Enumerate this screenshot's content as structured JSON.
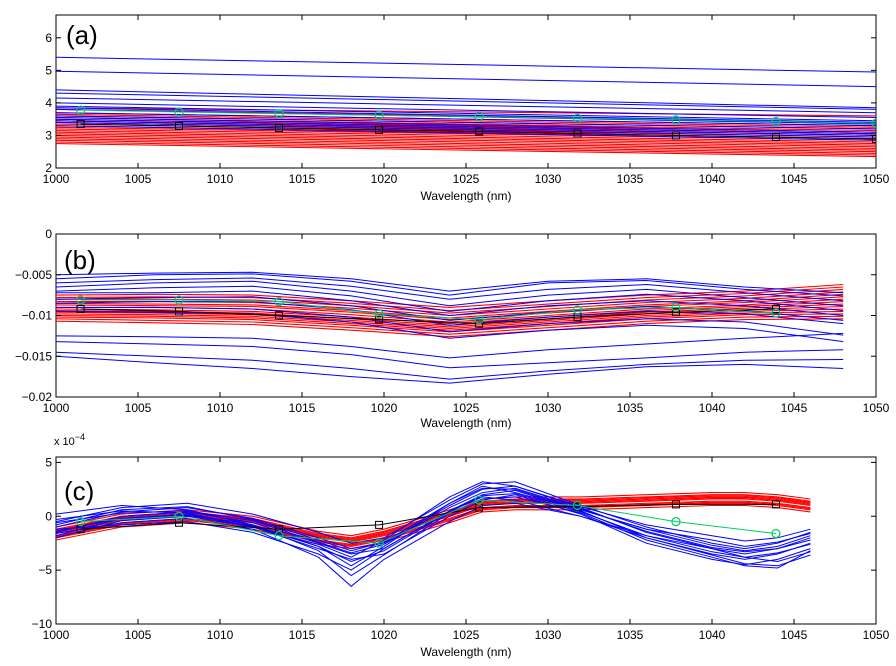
{
  "chart_data": [
    {
      "type": "line",
      "panel_label": "(a)",
      "xlabel": "Wavelength (nm)",
      "ylabel": "",
      "xlim": [
        1000,
        1050
      ],
      "ylim": [
        2,
        6.7
      ],
      "xticks": [
        1000,
        1005,
        1010,
        1015,
        1020,
        1025,
        1030,
        1035,
        1040,
        1045,
        1050
      ],
      "yticks": [
        2,
        3,
        4,
        5,
        6
      ],
      "colors": {
        "group_a": "#0000ff",
        "group_b": "#ff0000",
        "mean_a": "#00cc66",
        "mean_b": "#000000"
      },
      "x": [
        1000,
        1050
      ],
      "series_blue": [
        [
          5.4,
          4.95
        ],
        [
          4.97,
          4.5
        ],
        [
          4.4,
          3.85
        ],
        [
          4.3,
          3.8
        ],
        [
          4.15,
          3.7
        ],
        [
          4.0,
          3.55
        ],
        [
          3.9,
          3.45
        ],
        [
          3.85,
          3.4
        ],
        [
          3.8,
          3.35
        ],
        [
          3.7,
          3.3
        ],
        [
          3.6,
          3.2
        ],
        [
          3.55,
          3.1
        ],
        [
          3.5,
          3.05
        ],
        [
          3.45,
          3.0
        ],
        [
          3.4,
          2.95
        ],
        [
          3.3,
          2.85
        ]
      ],
      "series_red": [
        [
          3.85,
          3.6
        ],
        [
          3.8,
          3.4
        ],
        [
          3.7,
          3.3
        ],
        [
          3.65,
          3.25
        ],
        [
          3.6,
          3.2
        ],
        [
          3.55,
          3.15
        ],
        [
          3.5,
          3.1
        ],
        [
          3.45,
          3.05
        ],
        [
          3.4,
          3.0
        ],
        [
          3.35,
          2.95
        ],
        [
          3.3,
          2.9
        ],
        [
          3.25,
          2.85
        ],
        [
          3.2,
          2.8
        ],
        [
          3.15,
          2.75
        ],
        [
          3.1,
          2.7
        ],
        [
          3.05,
          2.65
        ],
        [
          3.0,
          2.6
        ],
        [
          2.95,
          2.55
        ],
        [
          2.9,
          2.5
        ],
        [
          2.85,
          2.45
        ],
        [
          2.8,
          2.4
        ],
        [
          2.75,
          2.35
        ]
      ],
      "markers_x": [
        1001.5,
        1007.5,
        1013.6,
        1019.7,
        1025.8,
        1031.8,
        1037.8,
        1043.9,
        1050
      ],
      "mean_a": [
        3.78,
        3.72,
        3.67,
        3.62,
        3.58,
        3.53,
        3.48,
        3.43,
        3.38
      ],
      "mean_b": [
        3.35,
        3.29,
        3.23,
        3.17,
        3.12,
        3.06,
        3.0,
        2.95,
        2.89
      ]
    },
    {
      "type": "line",
      "panel_label": "(b)",
      "xlabel": "Wavelength (nm)",
      "ylabel": "",
      "xlim": [
        1000,
        1050
      ],
      "ylim": [
        -0.02,
        0
      ],
      "xticks": [
        1000,
        1005,
        1010,
        1015,
        1020,
        1025,
        1030,
        1035,
        1040,
        1045,
        1050
      ],
      "yticks": [
        -0.02,
        -0.015,
        -0.01,
        -0.005,
        0
      ],
      "ytick_labels": [
        "−0.02",
        "−0.015",
        "−0.01",
        "−0.005",
        "0"
      ],
      "colors": {
        "group_a": "#0000ff",
        "group_b": "#ff0000",
        "mean_a": "#00cc66",
        "mean_b": "#000000"
      },
      "x": [
        1000,
        1006,
        1012,
        1018,
        1024,
        1030,
        1036,
        1042,
        1048
      ],
      "series_blue": [
        [
          -0.005,
          -0.0048,
          -0.0047,
          -0.0055,
          -0.007,
          -0.0058,
          -0.0055,
          -0.0065,
          -0.0072
        ],
        [
          -0.0055,
          -0.005,
          -0.0049,
          -0.0058,
          -0.0075,
          -0.006,
          -0.0057,
          -0.0068,
          -0.0076
        ],
        [
          -0.006,
          -0.0056,
          -0.0054,
          -0.0064,
          -0.008,
          -0.0068,
          -0.0062,
          -0.0072,
          -0.0082
        ],
        [
          -0.0065,
          -0.006,
          -0.0058,
          -0.007,
          -0.0088,
          -0.0075,
          -0.0068,
          -0.0078,
          -0.0088
        ],
        [
          -0.007,
          -0.0066,
          -0.0064,
          -0.0076,
          -0.0095,
          -0.0082,
          -0.0074,
          -0.0082,
          -0.0094
        ],
        [
          -0.0072,
          -0.0072,
          -0.007,
          -0.0082,
          -0.01,
          -0.0088,
          -0.0082,
          -0.0088,
          -0.01
        ],
        [
          -0.008,
          -0.0078,
          -0.0077,
          -0.0088,
          -0.0106,
          -0.0096,
          -0.0089,
          -0.0094,
          -0.0106
        ],
        [
          -0.0085,
          -0.0083,
          -0.0083,
          -0.0093,
          -0.0112,
          -0.0102,
          -0.0095,
          -0.0098,
          -0.011
        ],
        [
          -0.009,
          -0.009,
          -0.0092,
          -0.0102,
          -0.012,
          -0.011,
          -0.0104,
          -0.0108,
          -0.0124
        ],
        [
          -0.0095,
          -0.0096,
          -0.0098,
          -0.0108,
          -0.0128,
          -0.0118,
          -0.0112,
          -0.0116,
          -0.0132
        ],
        [
          -0.0125,
          -0.0126,
          -0.0128,
          -0.0138,
          -0.0152,
          -0.0142,
          -0.0135,
          -0.0128,
          -0.0122
        ],
        [
          -0.0132,
          -0.0135,
          -0.0138,
          -0.0148,
          -0.0164,
          -0.0158,
          -0.0152,
          -0.0145,
          -0.0142
        ],
        [
          -0.0145,
          -0.015,
          -0.0155,
          -0.0165,
          -0.0178,
          -0.0168,
          -0.016,
          -0.0155,
          -0.0154
        ],
        [
          -0.015,
          -0.0158,
          -0.0165,
          -0.0175,
          -0.0183,
          -0.0172,
          -0.0163,
          -0.016,
          -0.0165
        ]
      ],
      "series_red": [
        [
          -0.0075,
          -0.0074,
          -0.0075,
          -0.0082,
          -0.009,
          -0.0082,
          -0.0075,
          -0.007,
          -0.0062
        ],
        [
          -0.0078,
          -0.0077,
          -0.0078,
          -0.0085,
          -0.0094,
          -0.0086,
          -0.0078,
          -0.0073,
          -0.0065
        ],
        [
          -0.008,
          -0.008,
          -0.0081,
          -0.0088,
          -0.0097,
          -0.0089,
          -0.0081,
          -0.0076,
          -0.0068
        ],
        [
          -0.0083,
          -0.0083,
          -0.0084,
          -0.0091,
          -0.01,
          -0.0092,
          -0.0084,
          -0.0079,
          -0.0071
        ],
        [
          -0.0085,
          -0.0086,
          -0.0087,
          -0.0094,
          -0.0103,
          -0.0095,
          -0.0087,
          -0.0082,
          -0.0074
        ],
        [
          -0.0087,
          -0.0088,
          -0.0089,
          -0.0096,
          -0.0105,
          -0.0097,
          -0.0089,
          -0.0084,
          -0.0077
        ],
        [
          -0.009,
          -0.009,
          -0.0092,
          -0.0099,
          -0.0108,
          -0.01,
          -0.0092,
          -0.0087,
          -0.008
        ],
        [
          -0.0092,
          -0.0093,
          -0.0095,
          -0.0102,
          -0.011,
          -0.0102,
          -0.0094,
          -0.0089,
          -0.0083
        ],
        [
          -0.0094,
          -0.0095,
          -0.0097,
          -0.0104,
          -0.0112,
          -0.0104,
          -0.0096,
          -0.0091,
          -0.0086
        ],
        [
          -0.0096,
          -0.0097,
          -0.0099,
          -0.0106,
          -0.0114,
          -0.0106,
          -0.0098,
          -0.0093,
          -0.0089
        ],
        [
          -0.0098,
          -0.0099,
          -0.0101,
          -0.0108,
          -0.0116,
          -0.0108,
          -0.01,
          -0.0095,
          -0.0092
        ],
        [
          -0.01,
          -0.0101,
          -0.0103,
          -0.011,
          -0.0118,
          -0.011,
          -0.0102,
          -0.0097,
          -0.0095
        ],
        [
          -0.0102,
          -0.0103,
          -0.0105,
          -0.0112,
          -0.012,
          -0.0112,
          -0.0104,
          -0.0099,
          -0.0098
        ],
        [
          -0.0104,
          -0.0106,
          -0.0108,
          -0.0115,
          -0.0123,
          -0.0115,
          -0.0107,
          -0.0102,
          -0.0101
        ],
        [
          -0.0107,
          -0.0109,
          -0.0111,
          -0.0118,
          -0.0126,
          -0.0118,
          -0.011,
          -0.0105,
          -0.0104
        ]
      ],
      "markers_x": [
        1001.5,
        1007.5,
        1013.6,
        1019.7,
        1025.8,
        1031.8,
        1037.8,
        1043.9
      ],
      "mean_a": [
        -0.0081,
        -0.0081,
        -0.0083,
        -0.0098,
        -0.0105,
        -0.0093,
        -0.009,
        -0.0097
      ],
      "mean_b": [
        -0.0092,
        -0.0095,
        -0.01,
        -0.0105,
        -0.011,
        -0.0102,
        -0.0096,
        -0.0092
      ]
    },
    {
      "type": "line",
      "panel_label": "(c)",
      "xlabel": "Wavelength (nm)",
      "ylabel": "",
      "y_exponent": "x 10",
      "y_exponent_power": "−4",
      "xlim": [
        1000,
        1050
      ],
      "ylim": [
        -10,
        5.5
      ],
      "xticks": [
        1000,
        1005,
        1010,
        1015,
        1020,
        1025,
        1030,
        1035,
        1040,
        1045,
        1050
      ],
      "yticks": [
        -10,
        -5,
        0,
        5
      ],
      "ytick_labels": [
        "−10",
        "−5",
        "0",
        "5"
      ],
      "colors": {
        "group_a": "#0000ff",
        "group_b": "#ff0000",
        "mean_a": "#00cc66",
        "mean_b": "#000000"
      },
      "x": [
        1000,
        1004,
        1008,
        1012,
        1016,
        1018,
        1020,
        1024,
        1026,
        1028,
        1032,
        1036,
        1040,
        1042,
        1044,
        1046
      ],
      "series_blue": [
        [
          -0.5,
          0.8,
          1.2,
          0.2,
          -1.5,
          -2.5,
          -2.0,
          1.5,
          3.0,
          3.2,
          1.0,
          -1.0,
          -2.5,
          -3.0,
          -2.5,
          -1.5
        ],
        [
          -1.0,
          0.4,
          0.8,
          -0.2,
          -2.0,
          -3.0,
          -2.5,
          1.0,
          2.5,
          2.8,
          0.8,
          -1.5,
          -3.0,
          -3.5,
          -3.0,
          -2.0
        ],
        [
          -1.5,
          0.0,
          0.4,
          -0.6,
          -2.5,
          -3.5,
          -3.0,
          0.5,
          2.0,
          2.4,
          0.5,
          -2.0,
          -3.5,
          -4.0,
          -3.5,
          -2.5
        ],
        [
          -2.0,
          -0.4,
          0.0,
          -1.0,
          -3.0,
          -4.0,
          -3.5,
          0.0,
          1.5,
          2.0,
          0.2,
          -2.5,
          -4.0,
          -4.5,
          -4.0,
          -3.0
        ],
        [
          -1.2,
          -0.8,
          -0.5,
          -1.5,
          -3.5,
          -5.0,
          -3.0,
          0.5,
          1.8,
          1.5,
          0.0,
          -1.8,
          -3.0,
          -3.8,
          -4.2,
          -3.3
        ],
        [
          0.2,
          1.0,
          0.6,
          -0.8,
          -2.8,
          -4.6,
          -2.8,
          1.2,
          2.8,
          2.2,
          0.6,
          -1.2,
          -2.2,
          -2.8,
          -2.4,
          -1.6
        ],
        [
          -0.8,
          0.6,
          0.9,
          -0.3,
          -2.2,
          -3.2,
          -2.4,
          1.2,
          2.6,
          2.5,
          0.6,
          -1.2,
          -2.7,
          -3.2,
          -2.8,
          -1.8
        ],
        [
          -1.6,
          -0.6,
          -0.2,
          -1.2,
          -3.8,
          -6.5,
          -4.0,
          -0.5,
          1.0,
          1.2,
          0.0,
          -2.0,
          -3.6,
          -4.4,
          -4.6,
          -3.6
        ],
        [
          -0.3,
          0.5,
          0.3,
          -1.0,
          -2.6,
          -3.8,
          -2.2,
          1.8,
          3.2,
          2.8,
          0.9,
          -0.8,
          -1.8,
          -2.3,
          -2.0,
          -1.2
        ],
        [
          -1.8,
          -0.2,
          0.2,
          -0.8,
          -3.2,
          -5.5,
          -3.6,
          0.3,
          1.6,
          1.8,
          0.3,
          -2.2,
          -3.8,
          -4.6,
          -4.8,
          -3.2
        ],
        [
          -0.6,
          0.3,
          0.5,
          -0.4,
          -2.4,
          -3.4,
          -2.6,
          0.8,
          2.2,
          2.6,
          0.7,
          -1.4,
          -2.9,
          -3.3,
          -3.0,
          -2.2
        ],
        [
          -1.4,
          -0.2,
          0.1,
          -0.9,
          -2.8,
          -4.2,
          -3.2,
          0.4,
          1.9,
          2.1,
          0.4,
          -1.8,
          -3.3,
          -3.8,
          -3.4,
          -2.6
        ]
      ],
      "series_red": [
        [
          -2.2,
          -1.0,
          -0.6,
          -1.2,
          -2.6,
          -3.0,
          -2.4,
          -0.6,
          0.4,
          0.6,
          0.6,
          0.8,
          1.0,
          1.0,
          0.8,
          0.4
        ],
        [
          -2.0,
          -0.8,
          -0.4,
          -1.0,
          -2.4,
          -2.8,
          -2.2,
          -0.4,
          0.6,
          0.8,
          0.8,
          1.0,
          1.2,
          1.2,
          1.0,
          0.6
        ],
        [
          -1.8,
          -0.6,
          -0.2,
          -0.8,
          -2.2,
          -2.6,
          -2.0,
          -0.2,
          0.8,
          1.0,
          1.0,
          1.2,
          1.4,
          1.4,
          1.2,
          0.8
        ],
        [
          -1.6,
          -0.4,
          0.0,
          -0.6,
          -2.0,
          -2.4,
          -1.8,
          0.0,
          1.0,
          1.2,
          1.2,
          1.4,
          1.6,
          1.6,
          1.4,
          1.0
        ],
        [
          -1.4,
          -0.2,
          0.2,
          -0.4,
          -1.8,
          -2.2,
          -1.6,
          0.2,
          1.2,
          1.4,
          1.4,
          1.6,
          1.8,
          1.8,
          1.6,
          1.2
        ],
        [
          -1.2,
          0.0,
          0.4,
          -0.2,
          -1.6,
          -2.0,
          -1.4,
          0.4,
          1.4,
          1.6,
          1.6,
          1.8,
          2.0,
          2.0,
          1.8,
          1.4
        ],
        [
          -1.0,
          0.2,
          0.6,
          0.0,
          -1.4,
          -1.8,
          -1.2,
          0.6,
          1.6,
          1.8,
          1.8,
          2.0,
          2.2,
          2.2,
          2.0,
          1.6
        ],
        [
          -1.9,
          -0.7,
          -0.3,
          -0.9,
          -2.3,
          -2.7,
          -2.1,
          -0.3,
          0.7,
          0.9,
          0.9,
          1.1,
          1.3,
          1.3,
          1.1,
          0.7
        ],
        [
          -1.5,
          -0.3,
          0.1,
          -0.5,
          -1.9,
          -2.3,
          -1.7,
          0.1,
          1.1,
          1.3,
          1.3,
          1.5,
          1.7,
          1.7,
          1.5,
          1.1
        ],
        [
          -1.3,
          -0.1,
          0.3,
          -0.3,
          -1.7,
          -2.1,
          -1.5,
          0.3,
          1.3,
          1.5,
          1.5,
          1.7,
          1.9,
          1.9,
          1.7,
          1.3
        ]
      ],
      "markers_x": [
        1001.5,
        1007.5,
        1013.6,
        1019.7,
        1025.8,
        1031.8,
        1037.8,
        1043.9
      ],
      "mean_a": [
        -0.5,
        0.0,
        -1.8,
        -2.5,
        1.5,
        1.0,
        -0.5,
        -1.6
      ],
      "mean_b": [
        -1.2,
        -0.6,
        -1.2,
        -0.8,
        0.8,
        0.9,
        1.1,
        1.1
      ]
    }
  ]
}
